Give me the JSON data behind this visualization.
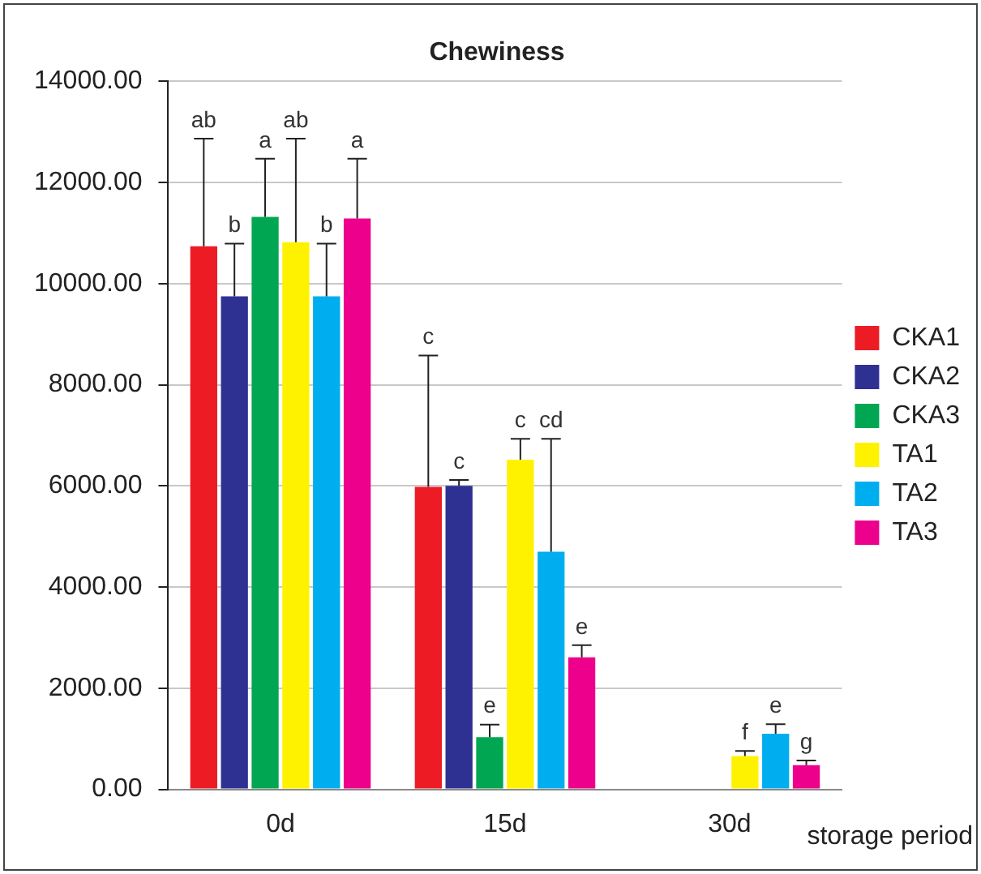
{
  "chart_data": {
    "type": "bar",
    "title": "Chewiness",
    "xlabel": "storage period",
    "categories": [
      "0d",
      "15d",
      "30d"
    ],
    "series": [
      {
        "name": "CKA1",
        "color": "#ed1c24",
        "values": [
          10740,
          5980,
          0
        ],
        "errors": [
          [
            10740,
            12870
          ],
          [
            5980,
            8580
          ],
          null
        ]
      },
      {
        "name": "CKA2",
        "color": "#2e3192",
        "values": [
          9750,
          6000,
          0
        ],
        "errors": [
          [
            9750,
            10790
          ],
          [
            6000,
            6120
          ],
          null
        ]
      },
      {
        "name": "CKA3",
        "color": "#00a651",
        "values": [
          11320,
          1030,
          0
        ],
        "errors": [
          [
            11320,
            12470
          ],
          [
            1030,
            1280
          ],
          null
        ]
      },
      {
        "name": "TA1",
        "color": "#fff200",
        "values": [
          10820,
          6520,
          660
        ],
        "errors": [
          [
            10820,
            12870
          ],
          [
            6520,
            6930
          ],
          [
            660,
            760
          ]
        ]
      },
      {
        "name": "TA2",
        "color": "#00aeef",
        "values": [
          9750,
          4700,
          1100
        ],
        "errors": [
          [
            9750,
            10790
          ],
          [
            4700,
            6930
          ],
          [
            1100,
            1290
          ]
        ]
      },
      {
        "name": "TA3",
        "color": "#ec008c",
        "values": [
          11290,
          2610,
          480
        ],
        "errors": [
          [
            11290,
            12470
          ],
          [
            2610,
            2850
          ],
          [
            480,
            570
          ]
        ]
      }
    ],
    "annotations": [
      "ab",
      "b",
      "a",
      "ab",
      "b",
      "a",
      "c",
      "c",
      "e",
      "c",
      "cd",
      "e",
      "f",
      "e",
      "g"
    ],
    "ylim": [
      0,
      14000
    ],
    "yticks": [
      {
        "value": 0,
        "label": "0.00"
      },
      {
        "value": 2000,
        "label": "2000.00"
      },
      {
        "value": 4000,
        "label": "4000.00"
      },
      {
        "value": 6000,
        "label": "6000.00"
      },
      {
        "value": 8000,
        "label": "8000.00"
      },
      {
        "value": 10000,
        "label": "10000.00"
      },
      {
        "value": 12000,
        "label": "12000.00"
      },
      {
        "value": 14000,
        "label": "14000.00"
      }
    ],
    "grid": "y",
    "legend": "right"
  }
}
